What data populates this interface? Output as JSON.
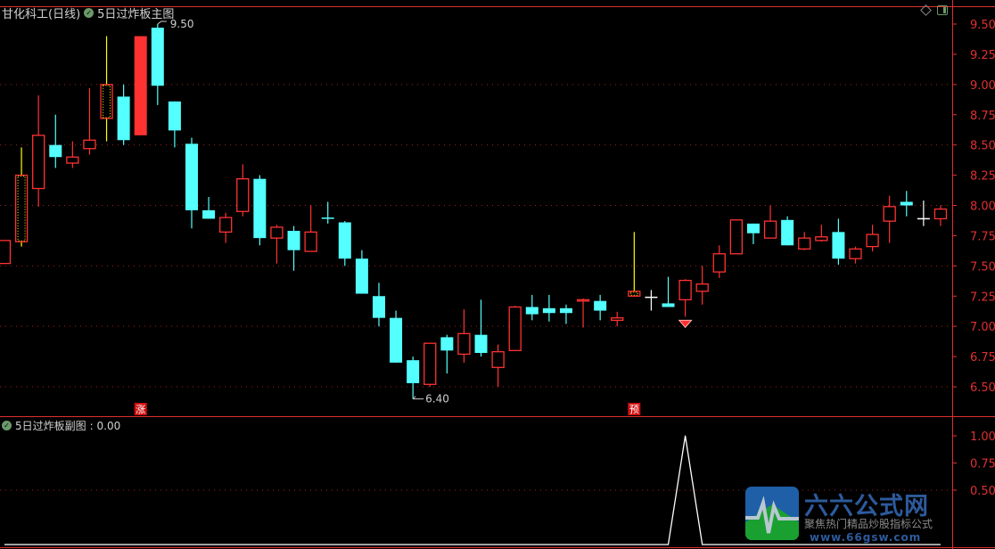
{
  "header": {
    "stock": "甘化科工(日线)",
    "indicator": "5日过炸板主图"
  },
  "sub_header": {
    "indicator": "5日过炸板副图",
    "value_label": " : 0.00"
  },
  "icons": {
    "indicator_toggle": "check-circle-icon",
    "top_right": [
      "diamond-icon",
      "panel-toggle-icon"
    ]
  },
  "colors": {
    "up": "#ff3232",
    "down": "#54ffff",
    "axis": "#e03030",
    "grid": "#a02020",
    "signal": "#ffff00",
    "doji": "#ffffff"
  },
  "logo": {
    "name": "六六公式网",
    "slogan": "聚焦热门精品炒股指标公式",
    "url": "www.66gsw.com"
  },
  "chart_data": [
    {
      "type": "candlestick",
      "title": "5日过炸板主图",
      "y_ticks": [
        "9.50",
        "9.25",
        "9.00",
        "8.75",
        "8.50",
        "8.25",
        "8.00",
        "7.75",
        "7.50",
        "7.25",
        "7.00",
        "6.75",
        "6.50"
      ],
      "ylim": [
        6.4,
        9.65
      ],
      "grid_levels": [
        9.0,
        8.5,
        8.0,
        7.5,
        7.0,
        6.5
      ],
      "annotations": {
        "high_label": "9.50",
        "low_label": "6.40",
        "limit_up_marker": "涨",
        "forecast_marker": "预"
      },
      "candles": [
        {
          "o": 7.52,
          "h": 7.71,
          "l": 7.52,
          "c": 7.71,
          "s": "up"
        },
        {
          "o": 7.7,
          "h": 8.48,
          "l": 7.66,
          "c": 8.25,
          "s": "yellow"
        },
        {
          "o": 8.14,
          "h": 8.91,
          "l": 7.99,
          "c": 8.58,
          "s": "up"
        },
        {
          "o": 8.5,
          "h": 8.75,
          "l": 8.31,
          "c": 8.4,
          "s": "down"
        },
        {
          "o": 8.35,
          "h": 8.53,
          "l": 8.31,
          "c": 8.4,
          "s": "up"
        },
        {
          "o": 8.47,
          "h": 8.97,
          "l": 8.42,
          "c": 8.54,
          "s": "up"
        },
        {
          "o": 8.72,
          "h": 9.4,
          "l": 8.53,
          "c": 9.0,
          "s": "yellow"
        },
        {
          "o": 8.9,
          "h": 9.0,
          "l": 8.5,
          "c": 8.54,
          "s": "down"
        },
        {
          "o": 8.58,
          "h": 9.4,
          "l": 8.58,
          "c": 9.4,
          "s": "filled",
          "mark": "limit_up_marker"
        },
        {
          "o": 9.47,
          "h": 9.5,
          "l": 8.83,
          "c": 8.99,
          "s": "down"
        },
        {
          "o": 8.86,
          "h": 8.86,
          "l": 8.48,
          "c": 8.62,
          "s": "down"
        },
        {
          "o": 8.51,
          "h": 8.56,
          "l": 7.81,
          "c": 7.96,
          "s": "down"
        },
        {
          "o": 7.96,
          "h": 8.07,
          "l": 7.89,
          "c": 7.89,
          "s": "down"
        },
        {
          "o": 7.78,
          "h": 7.94,
          "l": 7.69,
          "c": 7.9,
          "s": "up"
        },
        {
          "o": 7.95,
          "h": 8.34,
          "l": 7.91,
          "c": 8.22,
          "s": "up"
        },
        {
          "o": 8.22,
          "h": 8.25,
          "l": 7.67,
          "c": 7.73,
          "s": "down"
        },
        {
          "o": 7.73,
          "h": 7.84,
          "l": 7.52,
          "c": 7.82,
          "s": "up"
        },
        {
          "o": 7.79,
          "h": 7.83,
          "l": 7.46,
          "c": 7.63,
          "s": "down"
        },
        {
          "o": 7.62,
          "h": 8.0,
          "l": 7.62,
          "c": 7.78,
          "s": "up"
        },
        {
          "o": 7.9,
          "h": 8.03,
          "l": 7.85,
          "c": 7.9,
          "s": "down"
        },
        {
          "o": 7.86,
          "h": 7.87,
          "l": 7.5,
          "c": 7.56,
          "s": "down"
        },
        {
          "o": 7.56,
          "h": 7.63,
          "l": 7.27,
          "c": 7.27,
          "s": "down"
        },
        {
          "o": 7.25,
          "h": 7.36,
          "l": 7.0,
          "c": 7.07,
          "s": "down"
        },
        {
          "o": 7.07,
          "h": 7.13,
          "l": 6.7,
          "c": 6.7,
          "s": "down"
        },
        {
          "o": 6.72,
          "h": 6.75,
          "l": 6.4,
          "c": 6.53,
          "s": "down"
        },
        {
          "o": 6.52,
          "h": 6.86,
          "l": 6.5,
          "c": 6.86,
          "s": "up"
        },
        {
          "o": 6.91,
          "h": 6.93,
          "l": 6.61,
          "c": 6.8,
          "s": "down"
        },
        {
          "o": 6.77,
          "h": 7.14,
          "l": 6.7,
          "c": 6.94,
          "s": "up"
        },
        {
          "o": 6.93,
          "h": 7.22,
          "l": 6.75,
          "c": 6.78,
          "s": "down"
        },
        {
          "o": 6.66,
          "h": 6.85,
          "l": 6.5,
          "c": 6.79,
          "s": "up"
        },
        {
          "o": 6.8,
          "h": 7.17,
          "l": 6.8,
          "c": 7.16,
          "s": "up"
        },
        {
          "o": 7.16,
          "h": 7.26,
          "l": 7.05,
          "c": 7.1,
          "s": "down"
        },
        {
          "o": 7.15,
          "h": 7.26,
          "l": 7.04,
          "c": 7.11,
          "s": "down"
        },
        {
          "o": 7.15,
          "h": 7.18,
          "l": 7.02,
          "c": 7.11,
          "s": "down"
        },
        {
          "o": 7.21,
          "h": 7.23,
          "l": 6.99,
          "c": 7.22,
          "s": "up"
        },
        {
          "o": 7.21,
          "h": 7.26,
          "l": 7.05,
          "c": 7.13,
          "s": "down"
        },
        {
          "o": 7.05,
          "h": 7.12,
          "l": 7.0,
          "c": 7.07,
          "s": "up"
        },
        {
          "o": 7.25,
          "h": 7.78,
          "l": 7.25,
          "c": 7.29,
          "s": "yellow",
          "mark": "forecast_marker"
        },
        {
          "o": 7.24,
          "h": 7.3,
          "l": 7.13,
          "c": 7.24,
          "s": "doji"
        },
        {
          "o": 7.19,
          "h": 7.41,
          "l": 7.16,
          "c": 7.16,
          "s": "down"
        },
        {
          "o": 7.22,
          "h": 7.39,
          "l": 7.08,
          "c": 7.38,
          "s": "up",
          "gem": true
        },
        {
          "o": 7.29,
          "h": 7.5,
          "l": 7.18,
          "c": 7.35,
          "s": "up"
        },
        {
          "o": 7.45,
          "h": 7.67,
          "l": 7.4,
          "c": 7.6,
          "s": "up"
        },
        {
          "o": 7.6,
          "h": 7.88,
          "l": 7.6,
          "c": 7.88,
          "s": "up"
        },
        {
          "o": 7.85,
          "h": 7.85,
          "l": 7.68,
          "c": 7.77,
          "s": "down"
        },
        {
          "o": 7.73,
          "h": 8.0,
          "l": 7.73,
          "c": 7.87,
          "s": "up"
        },
        {
          "o": 7.88,
          "h": 7.91,
          "l": 7.67,
          "c": 7.67,
          "s": "down"
        },
        {
          "o": 7.64,
          "h": 7.78,
          "l": 7.63,
          "c": 7.73,
          "s": "up"
        },
        {
          "o": 7.71,
          "h": 7.84,
          "l": 7.7,
          "c": 7.74,
          "s": "up"
        },
        {
          "o": 7.78,
          "h": 7.89,
          "l": 7.51,
          "c": 7.56,
          "s": "down"
        },
        {
          "o": 7.56,
          "h": 7.66,
          "l": 7.52,
          "c": 7.64,
          "s": "up"
        },
        {
          "o": 7.66,
          "h": 7.84,
          "l": 7.62,
          "c": 7.76,
          "s": "up"
        },
        {
          "o": 7.87,
          "h": 8.08,
          "l": 7.69,
          "c": 7.99,
          "s": "up"
        },
        {
          "o": 8.03,
          "h": 8.12,
          "l": 7.91,
          "c": 8.0,
          "s": "down"
        },
        {
          "o": 7.89,
          "h": 8.04,
          "l": 7.83,
          "c": 7.89,
          "s": "doji"
        },
        {
          "o": 7.89,
          "h": 8.0,
          "l": 7.83,
          "c": 7.97,
          "s": "up"
        }
      ]
    },
    {
      "type": "line",
      "title": "5日过炸板副图",
      "y_ticks": [
        "1.00",
        "0.75",
        "0.50"
      ],
      "ylim": [
        0,
        1.0
      ],
      "values": [
        0,
        0,
        0,
        0,
        0,
        0,
        0,
        0,
        0,
        0,
        0,
        0,
        0,
        0,
        0,
        0,
        0,
        0,
        0,
        0,
        0,
        0,
        0,
        0,
        0,
        0,
        0,
        0,
        0,
        0,
        0,
        0,
        0,
        0,
        0,
        0,
        0,
        0,
        0,
        0,
        1,
        0,
        0,
        0,
        0,
        0,
        0,
        0,
        0,
        0,
        0,
        0,
        0,
        0,
        0,
        0
      ]
    }
  ]
}
